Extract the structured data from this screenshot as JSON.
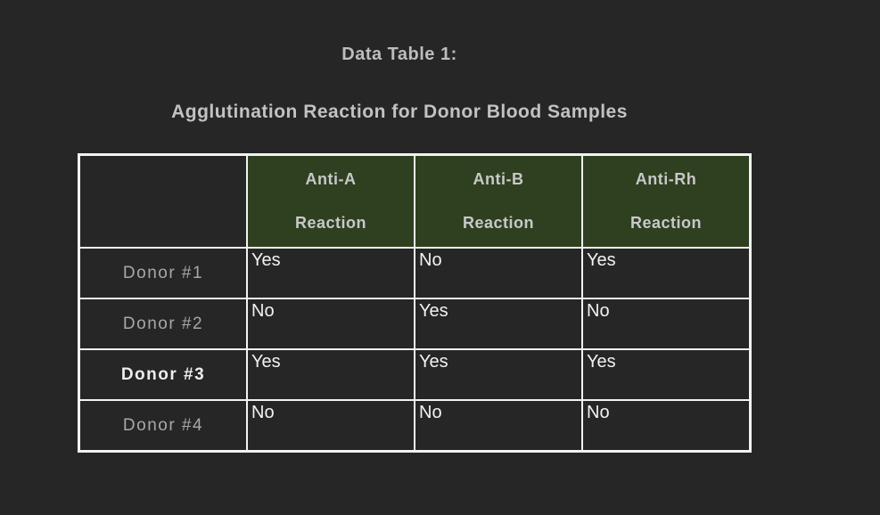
{
  "title": "Data Table 1:",
  "subtitle": "Agglutination Reaction for Donor Blood Samples",
  "table": {
    "columns": [
      {
        "line1": "Anti-A",
        "line2": "Reaction"
      },
      {
        "line1": "Anti-B",
        "line2": "Reaction"
      },
      {
        "line1": "Anti-Rh",
        "line2": "Reaction"
      }
    ],
    "rows": [
      {
        "label": "Donor #1",
        "values": [
          "Yes",
          "No",
          "Yes"
        ]
      },
      {
        "label": "Donor #2",
        "values": [
          "No",
          "Yes",
          "No"
        ]
      },
      {
        "label": "Donor #3",
        "values": [
          "Yes",
          "Yes",
          "Yes"
        ]
      },
      {
        "label": "Donor #4",
        "values": [
          "No",
          "No",
          "No"
        ]
      }
    ]
  },
  "chart_data": {
    "type": "table",
    "title": "Data Table 1:",
    "subtitle": "Agglutination Reaction for Donor Blood Samples",
    "columns": [
      "",
      "Anti-A Reaction",
      "Anti-B Reaction",
      "Anti-Rh Reaction"
    ],
    "rows": [
      [
        "Donor #1",
        "Yes",
        "No",
        "Yes"
      ],
      [
        "Donor #2",
        "No",
        "Yes",
        "No"
      ],
      [
        "Donor #3",
        "Yes",
        "Yes",
        "Yes"
      ],
      [
        "Donor #4",
        "No",
        "No",
        "No"
      ]
    ]
  },
  "colors": {
    "background": "#262626",
    "header_green": "#2f4020",
    "border_white": "#f2f2f2",
    "title_gray": "#bdbdbd",
    "header_text_gray": "#c8c8c8",
    "row_label_gray": "#a8a8a8",
    "row_label_emphasis": "#ededed",
    "value_white": "#f2f2f2"
  }
}
